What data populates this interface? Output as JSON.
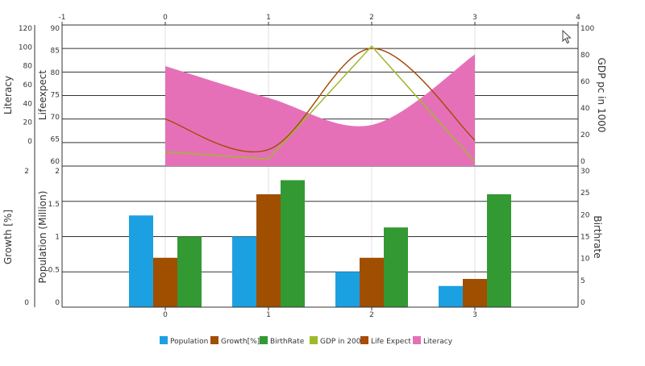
{
  "chart_data": [
    {
      "type": "area+line",
      "x_axis": {
        "ticks": [
          "-1",
          "0",
          "1",
          "2",
          "3",
          "4"
        ],
        "range": [
          -1,
          4
        ]
      },
      "axes": [
        {
          "key": "literacy",
          "label": "Literacy",
          "side": "left",
          "range": [
            0,
            120
          ],
          "ticks": [
            "0",
            "20",
            "40",
            "60",
            "80",
            "100",
            "120"
          ]
        },
        {
          "key": "lifeexpect",
          "label": "Lifeexpect",
          "side": "left",
          "range": [
            60,
            90
          ],
          "ticks": [
            "60",
            "65",
            "70",
            "75",
            "80",
            "85",
            "90"
          ]
        },
        {
          "key": "gdp",
          "label": "GDP pc in 1000",
          "side": "right",
          "range": [
            0,
            100
          ],
          "ticks": [
            "0",
            "20",
            "40",
            "60",
            "80",
            "100"
          ]
        }
      ],
      "x": [
        0,
        1,
        2,
        3
      ],
      "series": [
        {
          "name": "Literacy",
          "kind": "area",
          "axis": "literacy",
          "color": "#e670b8",
          "values": [
            85,
            58,
            35,
            95
          ]
        },
        {
          "name": "Life Expect",
          "kind": "line",
          "axis": "lifeexpect",
          "color": "#a64d0a",
          "values": [
            70,
            63.5,
            85,
            65.5
          ]
        },
        {
          "name": "GDP in 2000",
          "kind": "line",
          "axis": "gdp",
          "color": "#9dba2b",
          "values": [
            10,
            5,
            85,
            3
          ]
        }
      ],
      "grid": true
    },
    {
      "type": "bar",
      "categories": [
        "0",
        "1",
        "2",
        "3"
      ],
      "axes": [
        {
          "key": "growth",
          "label": "Growth [%]",
          "side": "left",
          "range": [
            0,
            2
          ],
          "ticks": [
            "0",
            "",
            "",
            "",
            "2"
          ]
        },
        {
          "key": "population",
          "label": "Population (Million)",
          "side": "left",
          "range": [
            0,
            2
          ],
          "ticks": [
            "0",
            "0.5",
            "1",
            "1.5",
            "2"
          ]
        },
        {
          "key": "birthrate",
          "label": "Birthrate",
          "side": "right",
          "range": [
            0,
            30
          ],
          "ticks": [
            "0",
            "5",
            "10",
            "15",
            "20",
            "25",
            "30"
          ]
        }
      ],
      "series": [
        {
          "name": "Population",
          "axis": "population",
          "color": "#1ba1e2",
          "values": [
            1.3,
            1.0,
            0.5,
            0.3
          ]
        },
        {
          "name": "Growth[%]",
          "axis": "growth",
          "color": "#a04e00",
          "values": [
            0.7,
            1.6,
            0.7,
            0.4
          ]
        },
        {
          "name": "BirthRate",
          "axis": "population",
          "color": "#339933",
          "values": [
            1.0,
            1.8,
            1.13,
            1.6
          ]
        }
      ],
      "grid": true
    }
  ],
  "legend": {
    "placement": "bottom-center",
    "items": [
      {
        "label": "Population",
        "color": "#1ba1e2"
      },
      {
        "label": "Growth[%]",
        "color": "#a04e00"
      },
      {
        "label": "BirthRate",
        "color": "#339933"
      },
      {
        "label": "GDP in 2000",
        "color": "#9dba2b"
      },
      {
        "label": "Life Expect",
        "color": "#a64d0a"
      },
      {
        "label": "Literacy",
        "color": "#e670b8"
      }
    ]
  },
  "icons": {
    "cursor": "mouse-pointer-icon"
  }
}
